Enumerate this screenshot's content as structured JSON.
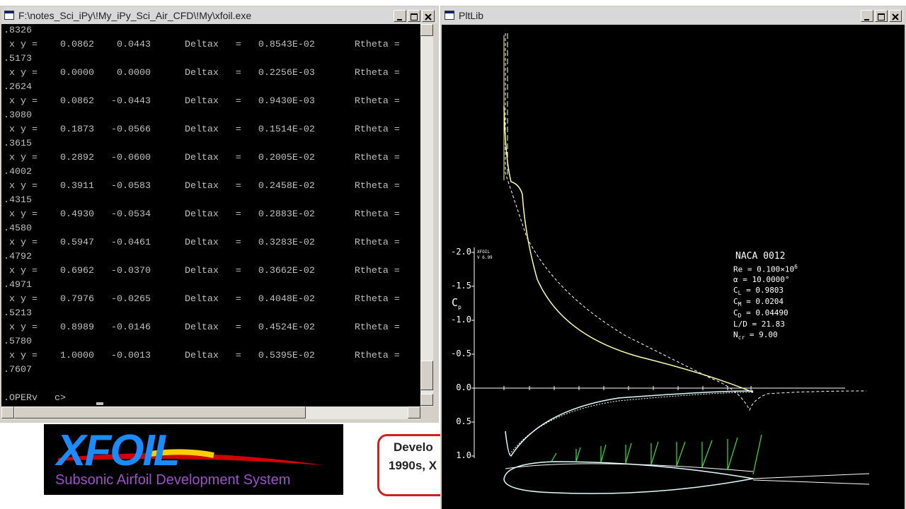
{
  "console": {
    "title": "F:\\notes_Sci_iPy\\!My_iPy_Sci_Air_CFD\\!My\\xfoil.exe",
    "lines": [
      ".8326",
      " x y =    0.0862    0.0443      Deltax   =   0.8543E-02       Rtheta =",
      ".5173",
      " x y =    0.0000    0.0000      Deltax   =   0.2256E-03       Rtheta =",
      ".2624",
      " x y =    0.0862   -0.0443      Deltax   =   0.9430E-03       Rtheta =",
      ".3080",
      " x y =    0.1873   -0.0566      Deltax   =   0.1514E-02       Rtheta =",
      ".3615",
      " x y =    0.2892   -0.0600      Deltax   =   0.2005E-02       Rtheta =",
      ".4002",
      " x y =    0.3911   -0.0583      Deltax   =   0.2458E-02       Rtheta =",
      ".4315",
      " x y =    0.4930   -0.0534      Deltax   =   0.2883E-02       Rtheta =",
      ".4580",
      " x y =    0.5947   -0.0461      Deltax   =   0.3283E-02       Rtheta =",
      ".4792",
      " x y =    0.6962   -0.0370      Deltax   =   0.3662E-02       Rtheta =",
      ".4971",
      " x y =    0.7976   -0.0265      Deltax   =   0.4048E-02       Rtheta =",
      ".5213",
      " x y =    0.8989   -0.0146      Deltax   =   0.4524E-02       Rtheta =",
      ".5780",
      " x y =    1.0000   -0.0013      Deltax   =   0.5395E-02       Rtheta =",
      ".7607"
    ],
    "prompt": ".OPERv   c>"
  },
  "logo": {
    "title": "XFOIL",
    "subtitle": "Subsonic Airfoil Development System"
  },
  "banner": {
    "lines": [
      "Develo",
      "1990s, X"
    ]
  },
  "plot": {
    "title": "PltLib",
    "ticks": [
      "-2.0",
      "-1.5",
      "-1.0",
      "-0.5",
      "0.0",
      "0.5",
      "1.0"
    ],
    "axis_label": {
      "symbol": "C",
      "sub": "p"
    },
    "version": [
      "XFOIL",
      "V 6.99"
    ],
    "airfoil": "NACA 0012",
    "legend": [
      {
        "symbol": "Re",
        "sub": "",
        "text": " = 0.100×10",
        "sup": "6"
      },
      {
        "symbol": "α",
        "sub": "",
        "text": " = 10.0000°",
        "sup": ""
      },
      {
        "symbol": "C",
        "sub": "L",
        "text": " = 0.9803",
        "sup": ""
      },
      {
        "symbol": "C",
        "sub": "M",
        "text": " = 0.0204",
        "sup": ""
      },
      {
        "symbol": "C",
        "sub": "D",
        "text": " = 0.04490",
        "sup": ""
      },
      {
        "symbol": "L/D",
        "sub": "",
        "text": " = 21.83",
        "sup": ""
      },
      {
        "symbol": "N",
        "sub": "cr",
        "text": " = 9.00",
        "sup": ""
      }
    ]
  }
}
